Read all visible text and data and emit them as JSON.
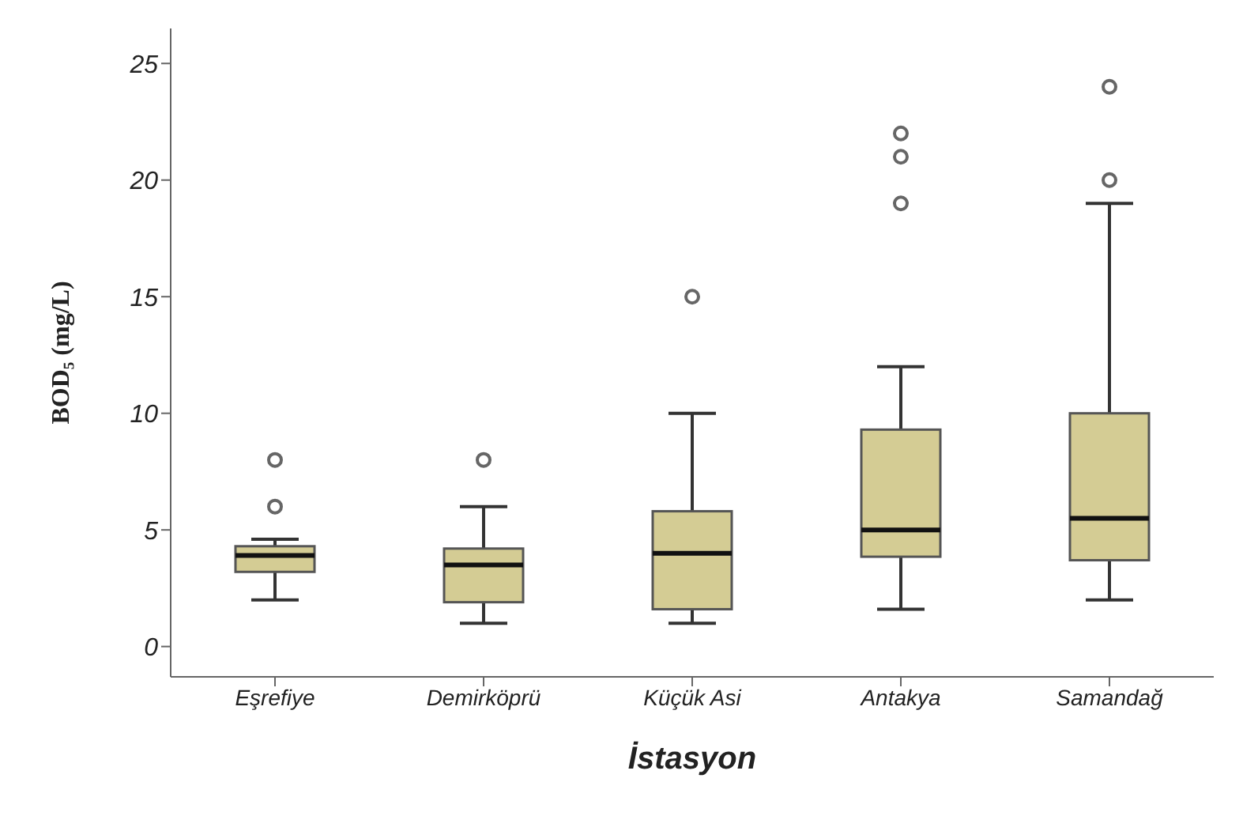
{
  "chart_data": {
    "type": "box",
    "xlabel": "İstasyon",
    "ylabel": "BOD₅ (mg/L)",
    "categories": [
      "Eşrefiye",
      "Demirköprü",
      "Küçük Asi",
      "Antakya",
      "Samandağ"
    ],
    "color": "#d4cc94",
    "boxes": [
      {
        "low": 2,
        "q1": 3.2,
        "median": 3.9,
        "q3": 4.3,
        "high": 4.6,
        "outliers": [
          6,
          8
        ]
      },
      {
        "low": 1,
        "q1": 1.9,
        "median": 3.5,
        "q3": 4.2,
        "high": 6,
        "outliers": [
          8
        ]
      },
      {
        "low": 1,
        "q1": 1.6,
        "median": 4,
        "q3": 5.8,
        "high": 10,
        "outliers": [
          15
        ]
      },
      {
        "low": 1.6,
        "q1": 3.85,
        "median": 5,
        "q3": 9.3,
        "high": 12,
        "outliers": [
          19,
          21,
          22
        ]
      },
      {
        "low": 2,
        "q1": 3.7,
        "median": 5.5,
        "q3": 10,
        "high": 19,
        "outliers": [
          20,
          24
        ]
      }
    ],
    "ylim": [
      -1.3,
      26.5
    ],
    "yticks": [
      0,
      5,
      10,
      15,
      20,
      25
    ],
    "grid": false
  }
}
